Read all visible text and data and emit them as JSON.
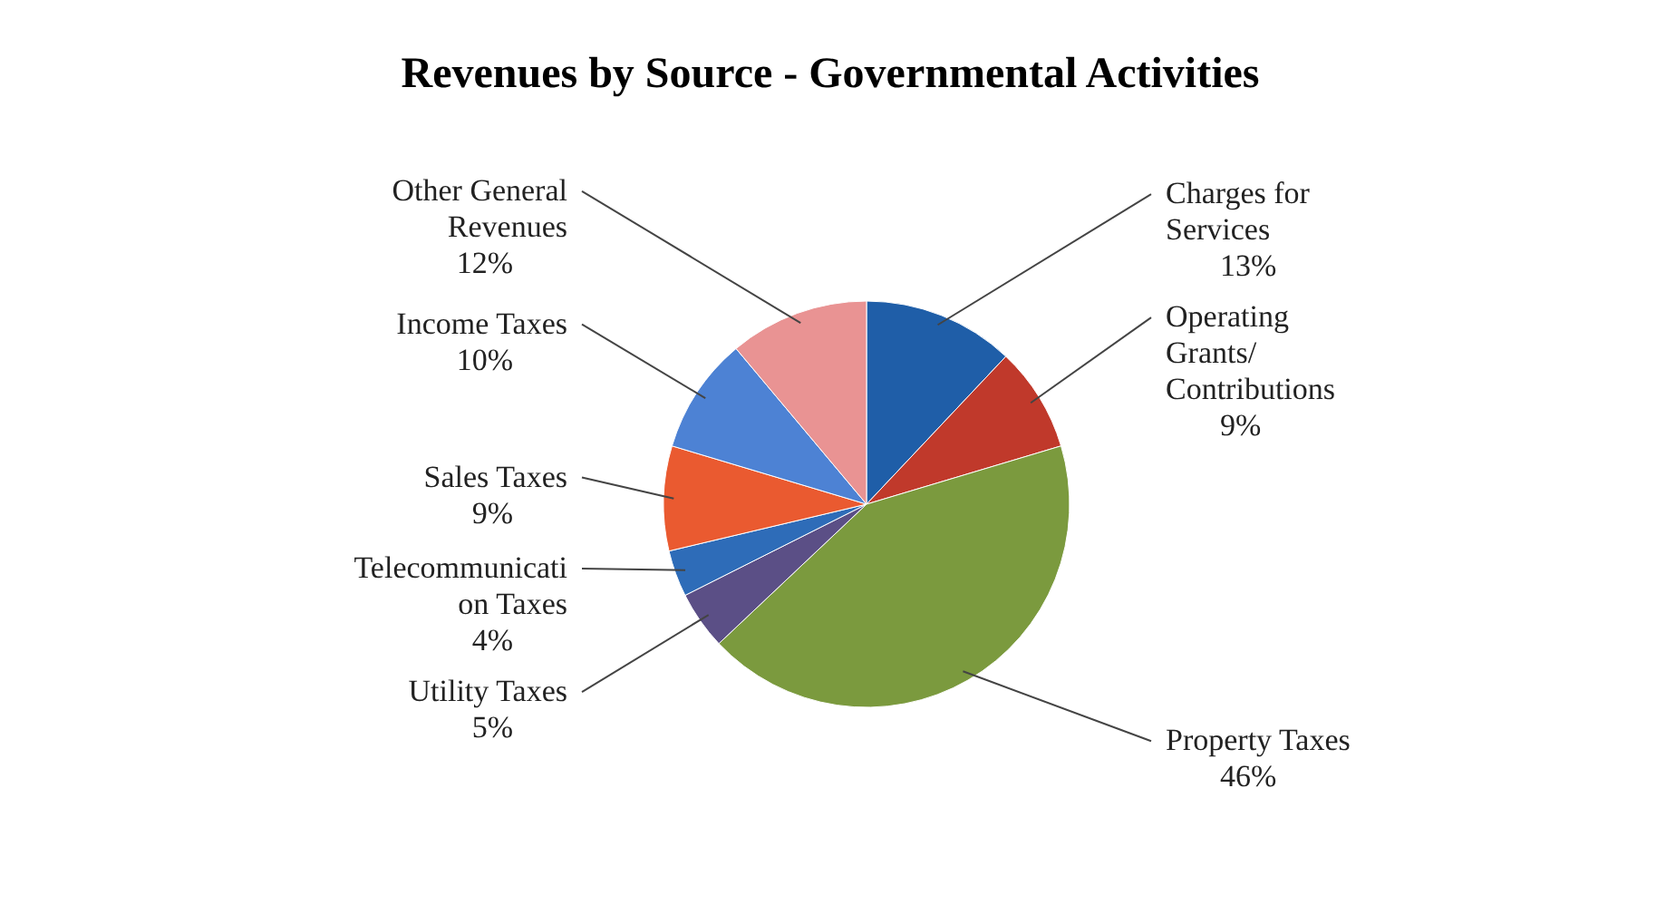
{
  "chart_data": {
    "type": "pie",
    "title": "Revenues by Source - Governmental Activities",
    "categories": [
      "Charges for\nServices",
      "Operating\nGrants/\nContributions",
      "Property Taxes",
      "Utility Taxes",
      "Telecommunicati\non Taxes",
      "Sales Taxes",
      "Income Taxes",
      "Other General\nRevenues"
    ],
    "values": [
      13,
      9,
      46,
      5,
      4,
      9,
      10,
      12
    ],
    "value_labels": [
      "13%",
      "9%",
      "46%",
      "5%",
      "4%",
      "9%",
      "10%",
      "12%"
    ],
    "colors": [
      "#1f5ea8",
      "#c0392b",
      "#7b9a3e",
      "#5b4f86",
      "#2e6cb8",
      "#ea5a30",
      "#4d82d4",
      "#e99393"
    ]
  }
}
